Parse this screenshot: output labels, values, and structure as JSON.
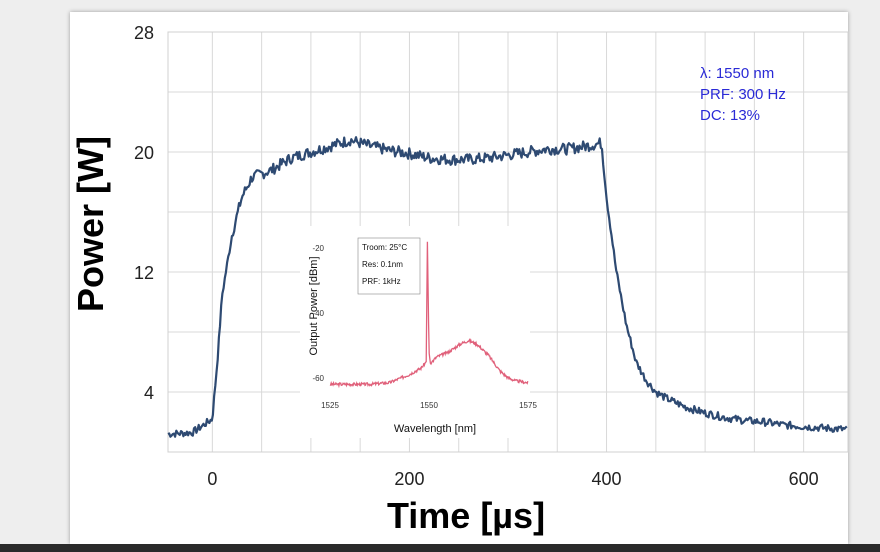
{
  "chart_data": [
    {
      "type": "line",
      "title": "",
      "xlabel": "Time [µs]",
      "ylabel": "Power [W]",
      "xlim": [
        -45,
        645
      ],
      "ylim": [
        0,
        28
      ],
      "xticks": [
        0,
        200,
        400,
        600
      ],
      "yticks": [
        4,
        12,
        20,
        28
      ],
      "grid": true,
      "annotations": [
        "λ: 1550 nm",
        "PRF: 300 Hz",
        "DC: 13%"
      ],
      "series": [
        {
          "color": "#2e4a72",
          "x": [
            -45,
            -20,
            0,
            5,
            10,
            20,
            30,
            40,
            60,
            80,
            100,
            120,
            140,
            160,
            180,
            200,
            220,
            240,
            260,
            280,
            300,
            320,
            340,
            360,
            380,
            395,
            400,
            410,
            420,
            430,
            440,
            450,
            460,
            480,
            500,
            520,
            540,
            560,
            580,
            600,
            620,
            645
          ],
          "y": [
            1.2,
            1.3,
            2.2,
            6.0,
            10.5,
            14.5,
            17.0,
            18.3,
            18.8,
            19.6,
            20.0,
            20.4,
            20.8,
            20.4,
            20.1,
            19.9,
            19.6,
            19.5,
            19.5,
            19.6,
            19.8,
            20.0,
            20.2,
            20.2,
            20.4,
            20.6,
            17.0,
            12.0,
            8.5,
            6.0,
            4.8,
            4.0,
            3.6,
            3.0,
            2.6,
            2.3,
            2.1,
            2.0,
            1.8,
            1.7,
            1.6,
            1.5
          ]
        }
      ]
    },
    {
      "type": "line",
      "title": "",
      "xlabel": "Wavelength [nm]",
      "ylabel": "Output Power [dBm]",
      "xlim": [
        1525,
        1575
      ],
      "ylim": [
        -65,
        -15
      ],
      "xticks": [
        1525,
        1550,
        1575
      ],
      "xtick_labels": [
        "1525",
        "1550",
        "1575"
      ],
      "yticks": [
        -20,
        -40,
        -60
      ],
      "ytick_labels": [
        "-20",
        "-40",
        "-60"
      ],
      "grid": false,
      "legend_lines": [
        "Troom: 25°C",
        "Res: 0.1nm",
        "PRF: 1kHz"
      ],
      "series": [
        {
          "color": "#e0607a",
          "x": [
            1525,
            1530,
            1535,
            1540,
            1545,
            1548,
            1549.3,
            1549.6,
            1550,
            1550.4,
            1550.8,
            1552,
            1555,
            1558,
            1560,
            1562,
            1565,
            1568,
            1570,
            1572,
            1575
          ],
          "y": [
            -62,
            -62,
            -62,
            -61.5,
            -59,
            -57,
            -55,
            -18,
            -52,
            -56,
            -55,
            -53.5,
            -52,
            -49.5,
            -48.5,
            -49.5,
            -53,
            -58,
            -60,
            -61,
            -61.5
          ]
        }
      ]
    }
  ]
}
